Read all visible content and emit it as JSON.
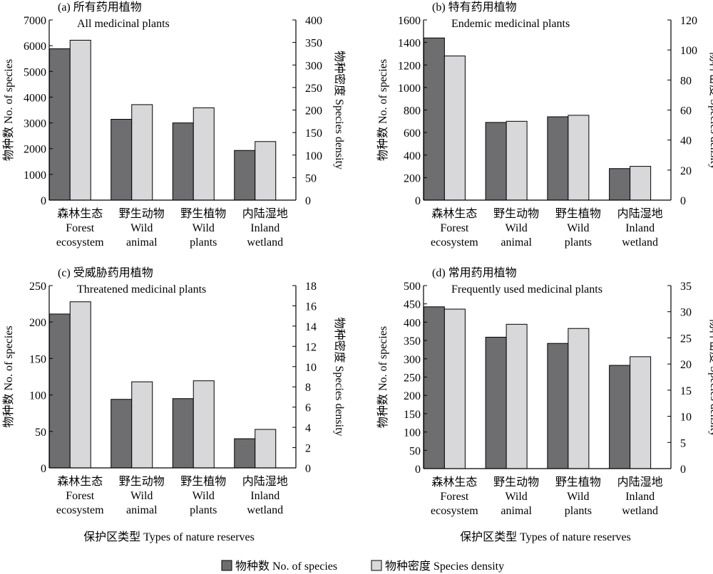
{
  "legend": [
    {
      "label": "物种数 No. of species",
      "color": "#6e6e70"
    },
    {
      "label": "物种密度 Species density",
      "color": "#d8d8da"
    }
  ],
  "x_axis_title": "保护区类型 Types of nature reserves",
  "categories": [
    [
      "森林生态",
      "Forest",
      "ecosystem"
    ],
    [
      "野生动物",
      "Wild",
      "animal"
    ],
    [
      "野生植物",
      "Wild",
      "plants"
    ],
    [
      "内陆湿地",
      "Inland",
      "wetland"
    ]
  ],
  "left_axis_label": "物种数 No. of species",
  "right_axis_label": "物种密度 Species density",
  "chart_data": [
    {
      "type": "bar",
      "panel": "(a) 所有药用植物",
      "title": "All medicinal plants",
      "categories": [
        "森林生态 Forest ecosystem",
        "野生动物 Wild animal",
        "野生植物 Wild plants",
        "内陆湿地 Inland wetland"
      ],
      "series": [
        {
          "name": "物种数 No. of species",
          "axis": "left",
          "values": [
            5880,
            3140,
            3000,
            1930
          ]
        },
        {
          "name": "物种密度 Species density",
          "axis": "right",
          "values": [
            355,
            212,
            205,
            130
          ]
        }
      ],
      "ylim_left": [
        0,
        7000
      ],
      "yticks_left": [
        0,
        1000,
        2000,
        3000,
        4000,
        5000,
        6000,
        7000
      ],
      "ylim_right": [
        0,
        400
      ],
      "yticks_right": [
        0,
        50,
        100,
        150,
        200,
        250,
        300,
        350,
        400
      ]
    },
    {
      "type": "bar",
      "panel": "(b) 特有药用植物",
      "title": "Endemic medicinal plants",
      "categories": [
        "森林生态 Forest ecosystem",
        "野生动物 Wild animal",
        "野生植物 Wild plants",
        "内陆湿地 Inland wetland"
      ],
      "series": [
        {
          "name": "物种数 No. of species",
          "axis": "left",
          "values": [
            1440,
            690,
            740,
            280
          ]
        },
        {
          "name": "物种密度 Species density",
          "axis": "right",
          "values": [
            96,
            52.5,
            56.5,
            22.5
          ]
        }
      ],
      "ylim_left": [
        0,
        1600
      ],
      "yticks_left": [
        0,
        200,
        400,
        600,
        800,
        1000,
        1200,
        1400,
        1600
      ],
      "ylim_right": [
        0,
        120
      ],
      "yticks_right": [
        0,
        20,
        40,
        60,
        80,
        100,
        120
      ]
    },
    {
      "type": "bar",
      "panel": "(c) 受威胁药用植物",
      "title": "Threatened medicinal plants",
      "categories": [
        "森林生态 Forest ecosystem",
        "野生动物 Wild animal",
        "野生植物 Wild plants",
        "内陆湿地 Inland wetland"
      ],
      "series": [
        {
          "name": "物种数 No. of species",
          "axis": "left",
          "values": [
            211,
            94,
            95,
            40
          ]
        },
        {
          "name": "物种密度 Species density",
          "axis": "right",
          "values": [
            16.4,
            8.5,
            8.6,
            3.8
          ]
        }
      ],
      "ylim_left": [
        0,
        250
      ],
      "yticks_left": [
        0,
        50,
        100,
        150,
        200,
        250
      ],
      "ylim_right": [
        0,
        18
      ],
      "yticks_right": [
        0,
        2,
        4,
        6,
        8,
        10,
        12,
        14,
        16,
        18
      ]
    },
    {
      "type": "bar",
      "panel": "(d) 常用药用植物",
      "title": "Frequently used medicinal plants",
      "categories": [
        "森林生态 Forest ecosystem",
        "野生动物 Wild animal",
        "野生植物 Wild plants",
        "内陆湿地 Inland wetland"
      ],
      "series": [
        {
          "name": "物种数 No. of species",
          "axis": "left",
          "values": [
            442,
            359,
            342,
            282
          ]
        },
        {
          "name": "物种密度 Species density",
          "axis": "right",
          "values": [
            30.5,
            27.6,
            26.8,
            21.4
          ]
        }
      ],
      "ylim_left": [
        0,
        500
      ],
      "yticks_left": [
        0,
        50,
        100,
        150,
        200,
        250,
        300,
        350,
        400,
        450,
        500
      ],
      "ylim_right": [
        0,
        35
      ],
      "yticks_right": [
        0,
        5,
        10,
        15,
        20,
        25,
        30,
        35
      ]
    }
  ]
}
